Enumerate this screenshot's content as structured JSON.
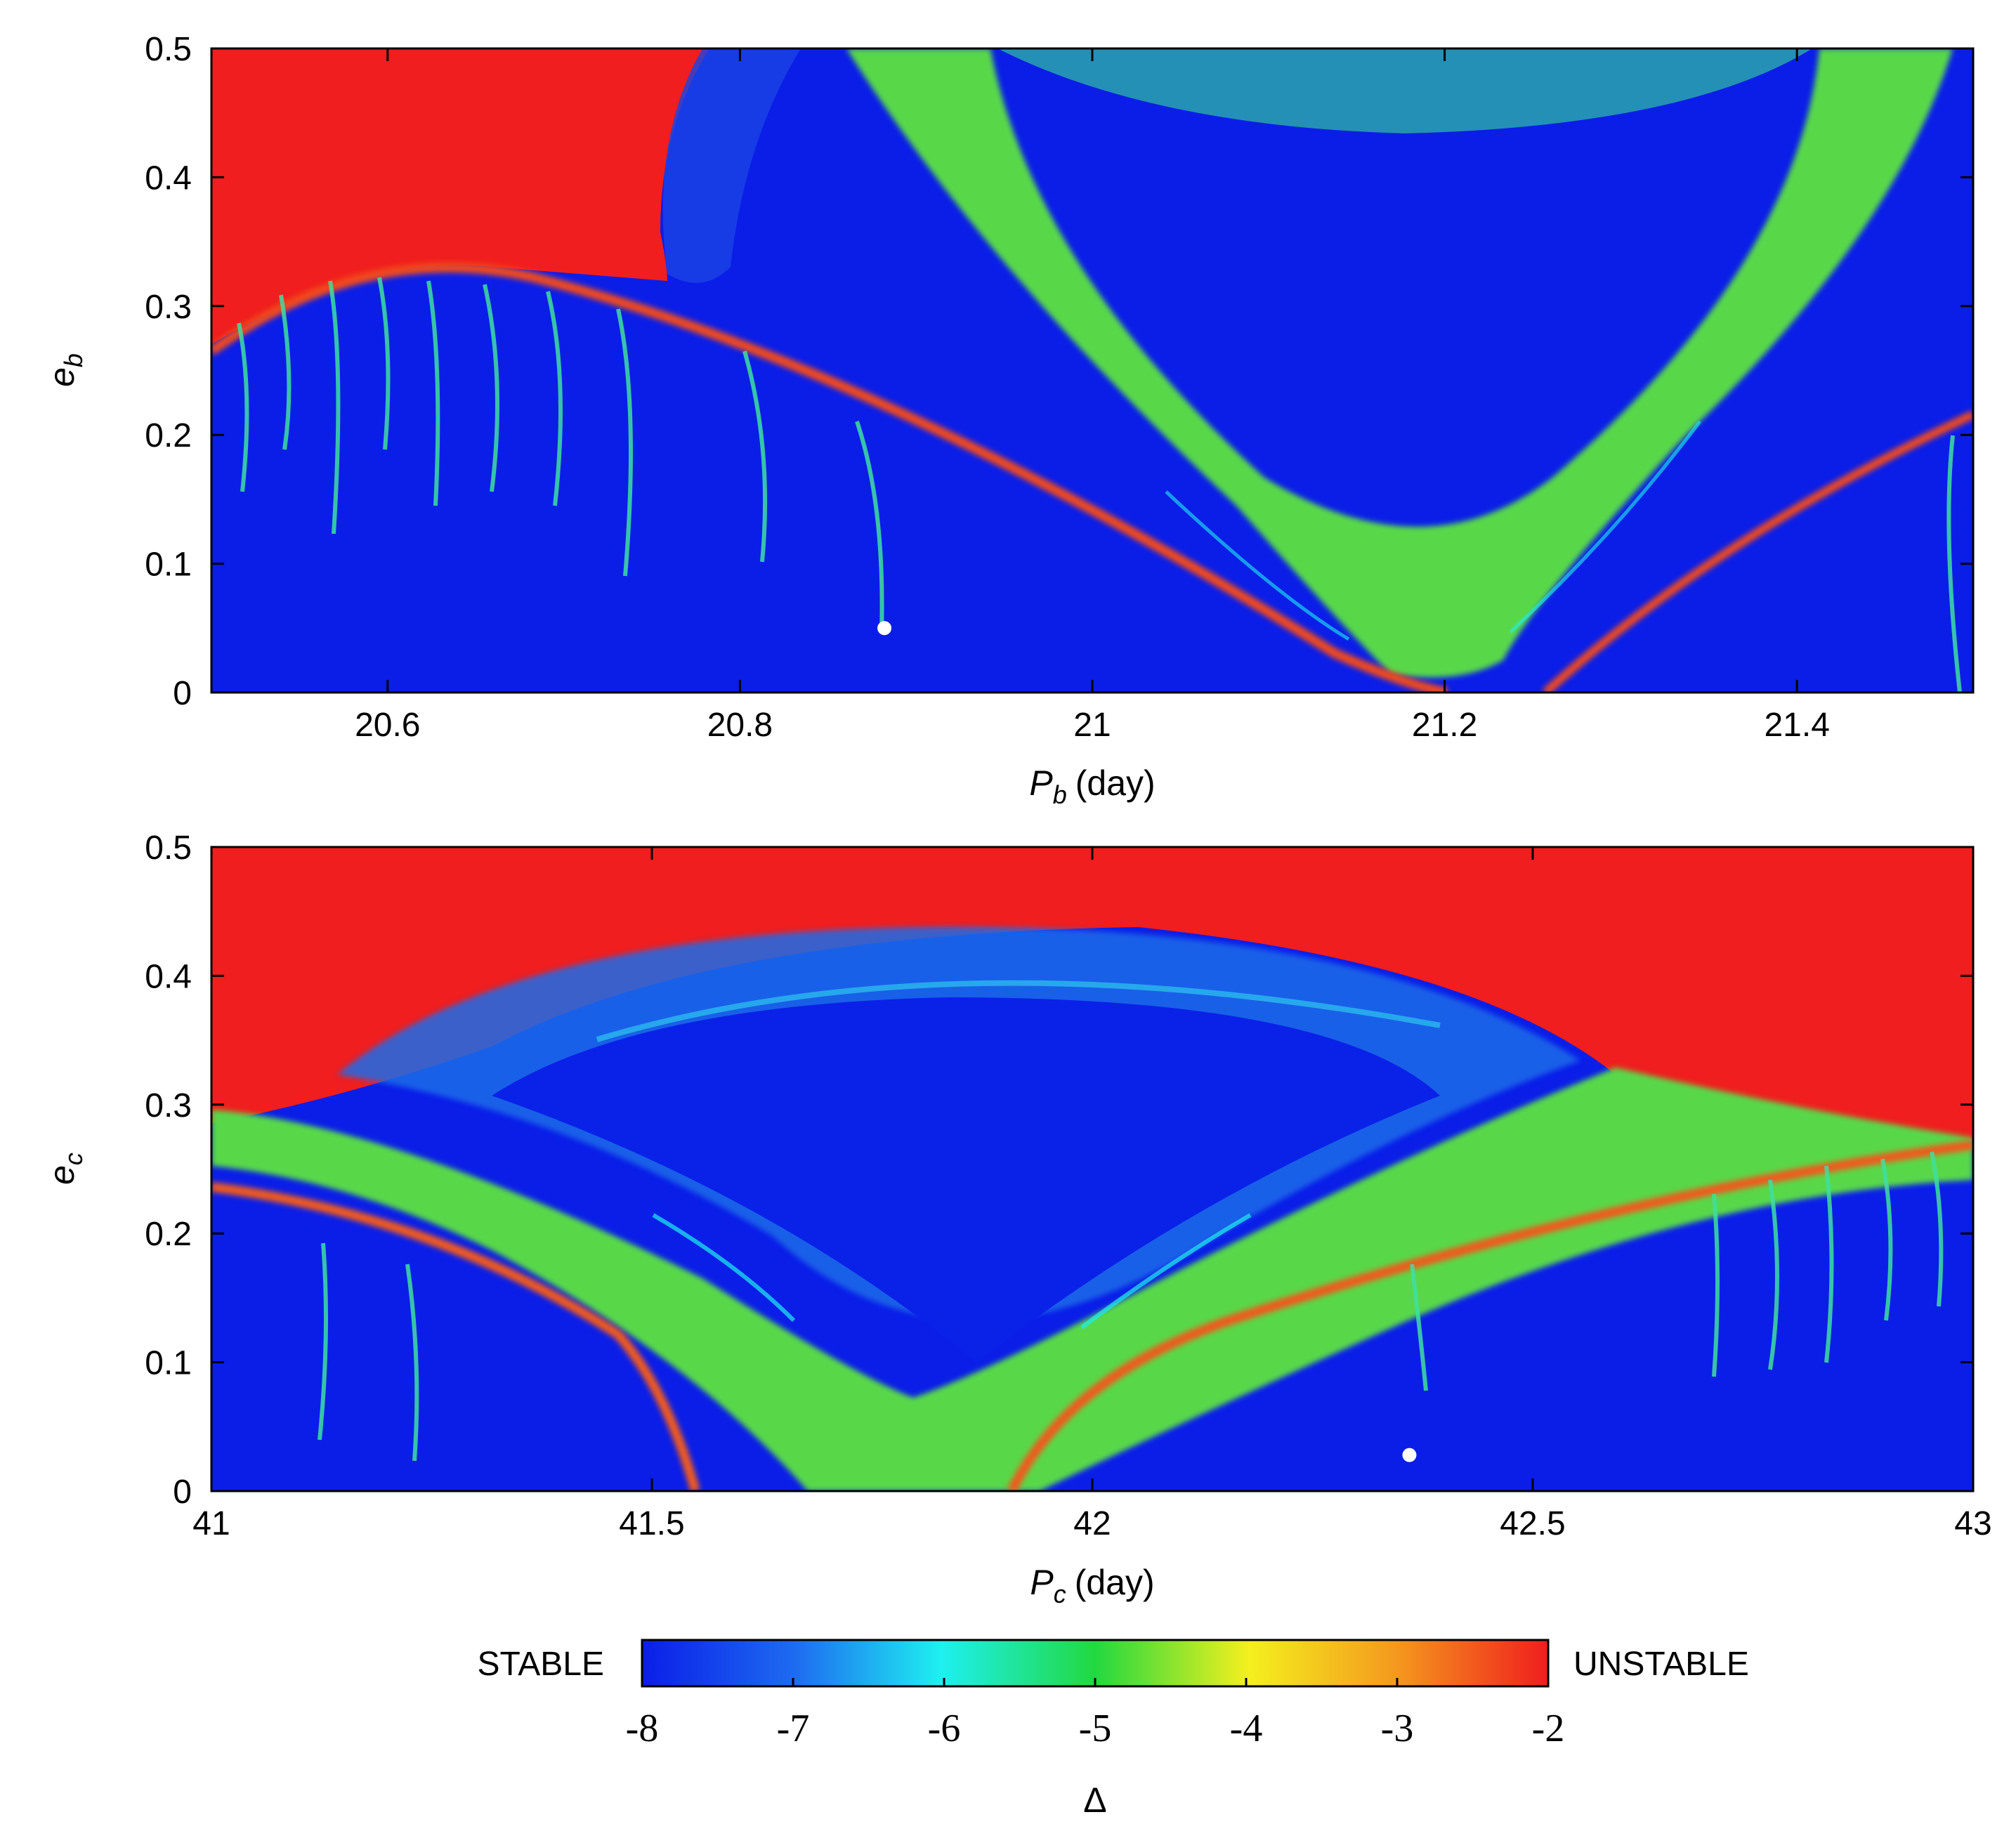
{
  "chart_data": [
    {
      "type": "heatmap",
      "panel": "top",
      "xlabel": "P",
      "xlabel_sub": "b",
      "xlabel_unit": "(day)",
      "ylabel": "e",
      "ylabel_sub": "b",
      "xlim": [
        20.5,
        21.5
      ],
      "ylim": [
        0,
        0.5
      ],
      "xticks": [
        20.6,
        20.8,
        21,
        21.2,
        21.4
      ],
      "xtick_labels": [
        "20.6",
        "20.8",
        "21",
        "21.2",
        "21.4"
      ],
      "yticks": [
        0,
        0.1,
        0.2,
        0.3,
        0.4,
        0.5
      ],
      "ytick_labels": [
        "0",
        "0.1",
        "0.2",
        "0.3",
        "0.4",
        "0.5"
      ],
      "marker": {
        "x": 20.882,
        "y": 0.05
      },
      "colorbar_range": [
        -8,
        -2
      ]
    },
    {
      "type": "heatmap",
      "panel": "bottom",
      "xlabel": "P",
      "xlabel_sub": "c",
      "xlabel_unit": "(day)",
      "ylabel": "e",
      "ylabel_sub": "c",
      "xlim": [
        41,
        43
      ],
      "ylim": [
        0,
        0.5
      ],
      "xticks": [
        41,
        41.5,
        42,
        42.5,
        43
      ],
      "xtick_labels": [
        "41",
        "41.5",
        "42",
        "42.5",
        "43"
      ],
      "yticks": [
        0,
        0.1,
        0.2,
        0.3,
        0.4,
        0.5
      ],
      "ytick_labels": [
        "0",
        "0.1",
        "0.2",
        "0.3",
        "0.4",
        "0.5"
      ],
      "marker": {
        "x": 42.36,
        "y": 0.028
      },
      "colorbar_range": [
        -8,
        -2
      ]
    }
  ],
  "colorbar": {
    "left_label": "STABLE",
    "right_label": "UNSTABLE",
    "ticks": [
      -8,
      -7,
      -6,
      -5,
      -4,
      -3,
      -2
    ],
    "tick_labels": [
      "-8",
      "-7",
      "-6",
      "-5",
      "-4",
      "-3",
      "-2"
    ],
    "label": "Δ",
    "colors": [
      "#0a1ee8",
      "#1f8cf0",
      "#1ef0f0",
      "#22d852",
      "#40e020",
      "#f4f01e",
      "#f4a01e",
      "#f01e1e"
    ]
  },
  "colors": {
    "stable": "#0a1ee8",
    "chaotic_band": "#58d848",
    "unstable": "#f01e1e",
    "marker": "#ffffff"
  }
}
